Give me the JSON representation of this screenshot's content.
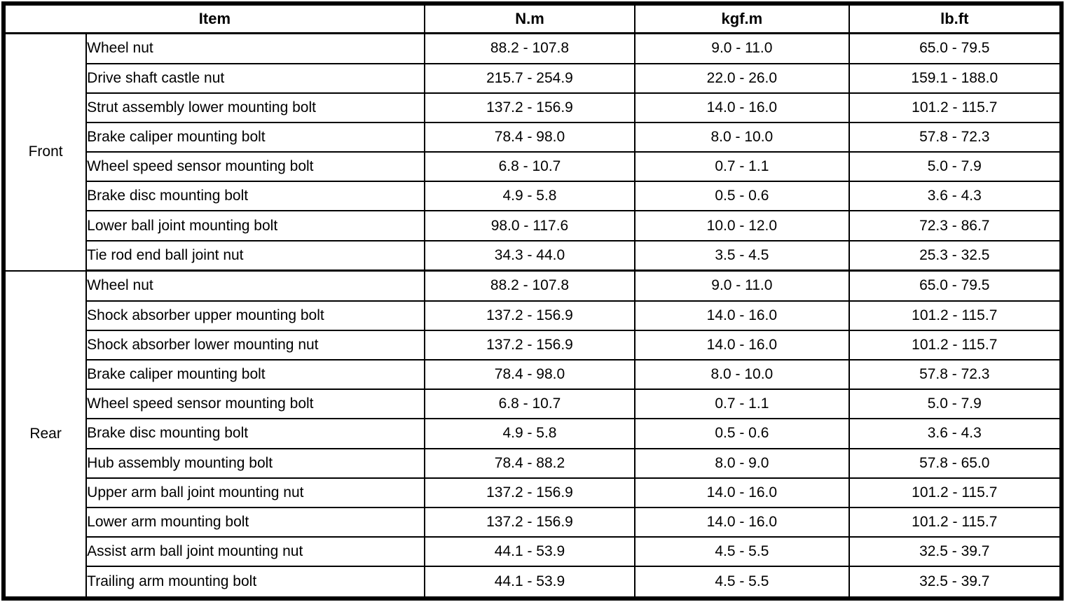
{
  "table": {
    "headers": {
      "item": "Item",
      "nm": "N.m",
      "kgfm": "kgf.m",
      "lbft": "lb.ft"
    },
    "sections": [
      {
        "group": "Front",
        "rows": [
          {
            "item": "Wheel nut",
            "nm": "88.2 - 107.8",
            "kgfm": "9.0 - 11.0",
            "lbft": "65.0 - 79.5"
          },
          {
            "item": "Drive shaft castle nut",
            "nm": "215.7 - 254.9",
            "kgfm": "22.0 - 26.0",
            "lbft": "159.1 - 188.0"
          },
          {
            "item": "Strut assembly lower mounting bolt",
            "nm": "137.2 - 156.9",
            "kgfm": "14.0 - 16.0",
            "lbft": "101.2 - 115.7"
          },
          {
            "item": "Brake caliper mounting bolt",
            "nm": "78.4 - 98.0",
            "kgfm": "8.0 - 10.0",
            "lbft": "57.8 - 72.3"
          },
          {
            "item": "Wheel speed sensor mounting bolt",
            "nm": "6.8 - 10.7",
            "kgfm": "0.7 - 1.1",
            "lbft": "5.0 - 7.9"
          },
          {
            "item": "Brake disc mounting bolt",
            "nm": "4.9 - 5.8",
            "kgfm": "0.5 - 0.6",
            "lbft": "3.6 - 4.3"
          },
          {
            "item": "Lower ball joint mounting bolt",
            "nm": "98.0 - 117.6",
            "kgfm": "10.0 - 12.0",
            "lbft": "72.3 - 86.7"
          },
          {
            "item": "Tie rod end ball joint nut",
            "nm": "34.3 - 44.0",
            "kgfm": "3.5 - 4.5",
            "lbft": "25.3 - 32.5"
          }
        ]
      },
      {
        "group": "Rear",
        "rows": [
          {
            "item": "Wheel nut",
            "nm": "88.2 - 107.8",
            "kgfm": "9.0 - 11.0",
            "lbft": "65.0 - 79.5"
          },
          {
            "item": "Shock absorber upper mounting bolt",
            "nm": "137.2 - 156.9",
            "kgfm": "14.0 - 16.0",
            "lbft": "101.2 - 115.7"
          },
          {
            "item": "Shock absorber lower mounting nut",
            "nm": "137.2 - 156.9",
            "kgfm": "14.0 - 16.0",
            "lbft": "101.2 - 115.7"
          },
          {
            "item": "Brake caliper mounting bolt",
            "nm": "78.4 - 98.0",
            "kgfm": "8.0 - 10.0",
            "lbft": "57.8 - 72.3"
          },
          {
            "item": "Wheel speed sensor mounting bolt",
            "nm": "6.8 - 10.7",
            "kgfm": "0.7 - 1.1",
            "lbft": "5.0 - 7.9"
          },
          {
            "item": "Brake disc mounting bolt",
            "nm": "4.9 - 5.8",
            "kgfm": "0.5 - 0.6",
            "lbft": "3.6 - 4.3"
          },
          {
            "item": "Hub assembly mounting bolt",
            "nm": "78.4 - 88.2",
            "kgfm": "8.0 - 9.0",
            "lbft": "57.8 - 65.0"
          },
          {
            "item": "Upper arm ball joint mounting nut",
            "nm": "137.2 - 156.9",
            "kgfm": "14.0 - 16.0",
            "lbft": "101.2 - 115.7"
          },
          {
            "item": "Lower arm mounting bolt",
            "nm": "137.2 - 156.9",
            "kgfm": "14.0 - 16.0",
            "lbft": "101.2 - 115.7"
          },
          {
            "item": "Assist arm ball joint mounting nut",
            "nm": "44.1 - 53.9",
            "kgfm": "4.5 - 5.5",
            "lbft": "32.5 - 39.7"
          },
          {
            "item": "Trailing arm mounting bolt",
            "nm": "44.1 - 53.9",
            "kgfm": "4.5 - 5.5",
            "lbft": "32.5 - 39.7"
          }
        ]
      }
    ],
    "colors": {
      "border": "#000000",
      "background": "#ffffff",
      "text": "#000000"
    }
  }
}
